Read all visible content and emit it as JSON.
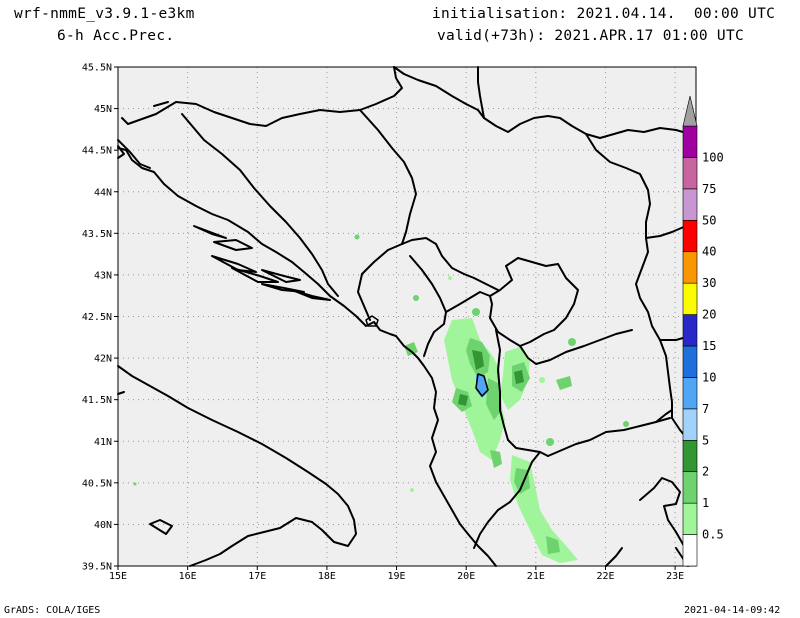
{
  "header": {
    "model": "wrf-nmmE_v3.9.1-e3km",
    "field": "6-h Acc.Prec.",
    "init": "initialisation: 2021.04.14.  00:00 UTC",
    "valid": "valid(+73h): 2021.APR.17 01:00 UTC"
  },
  "footer": {
    "left": "GrADS: COLA/IGES",
    "right": "2021-04-14-09:42"
  },
  "map": {
    "lat_labels": [
      "45.5N",
      "45N",
      "44.5N",
      "44N",
      "43.5N",
      "43N",
      "42.5N",
      "42N",
      "41.5N",
      "41N",
      "40.5N",
      "40N",
      "39.5N"
    ],
    "lon_labels": [
      "15E",
      "16E",
      "17E",
      "18E",
      "19E",
      "20E",
      "21E",
      "22E",
      "23E"
    ],
    "lat_range": [
      39.5,
      45.5
    ],
    "lon_range": [
      15,
      23.3
    ],
    "background": "#efefef"
  },
  "colorbar": {
    "labels": [
      "0.5",
      "1",
      "2",
      "5",
      "7",
      "10",
      "15",
      "20",
      "30",
      "40",
      "50",
      "75",
      "100"
    ],
    "colors": [
      "#ffffff",
      "#a0f59a",
      "#6ed26e",
      "#329632",
      "#a0d2fa",
      "#50a5f5",
      "#1e6edc",
      "#2828c8",
      "#fafa00",
      "#fa9600",
      "#fa0000",
      "#c896d2",
      "#c864a0",
      "#a000a0",
      "#a0a0a0"
    ]
  }
}
